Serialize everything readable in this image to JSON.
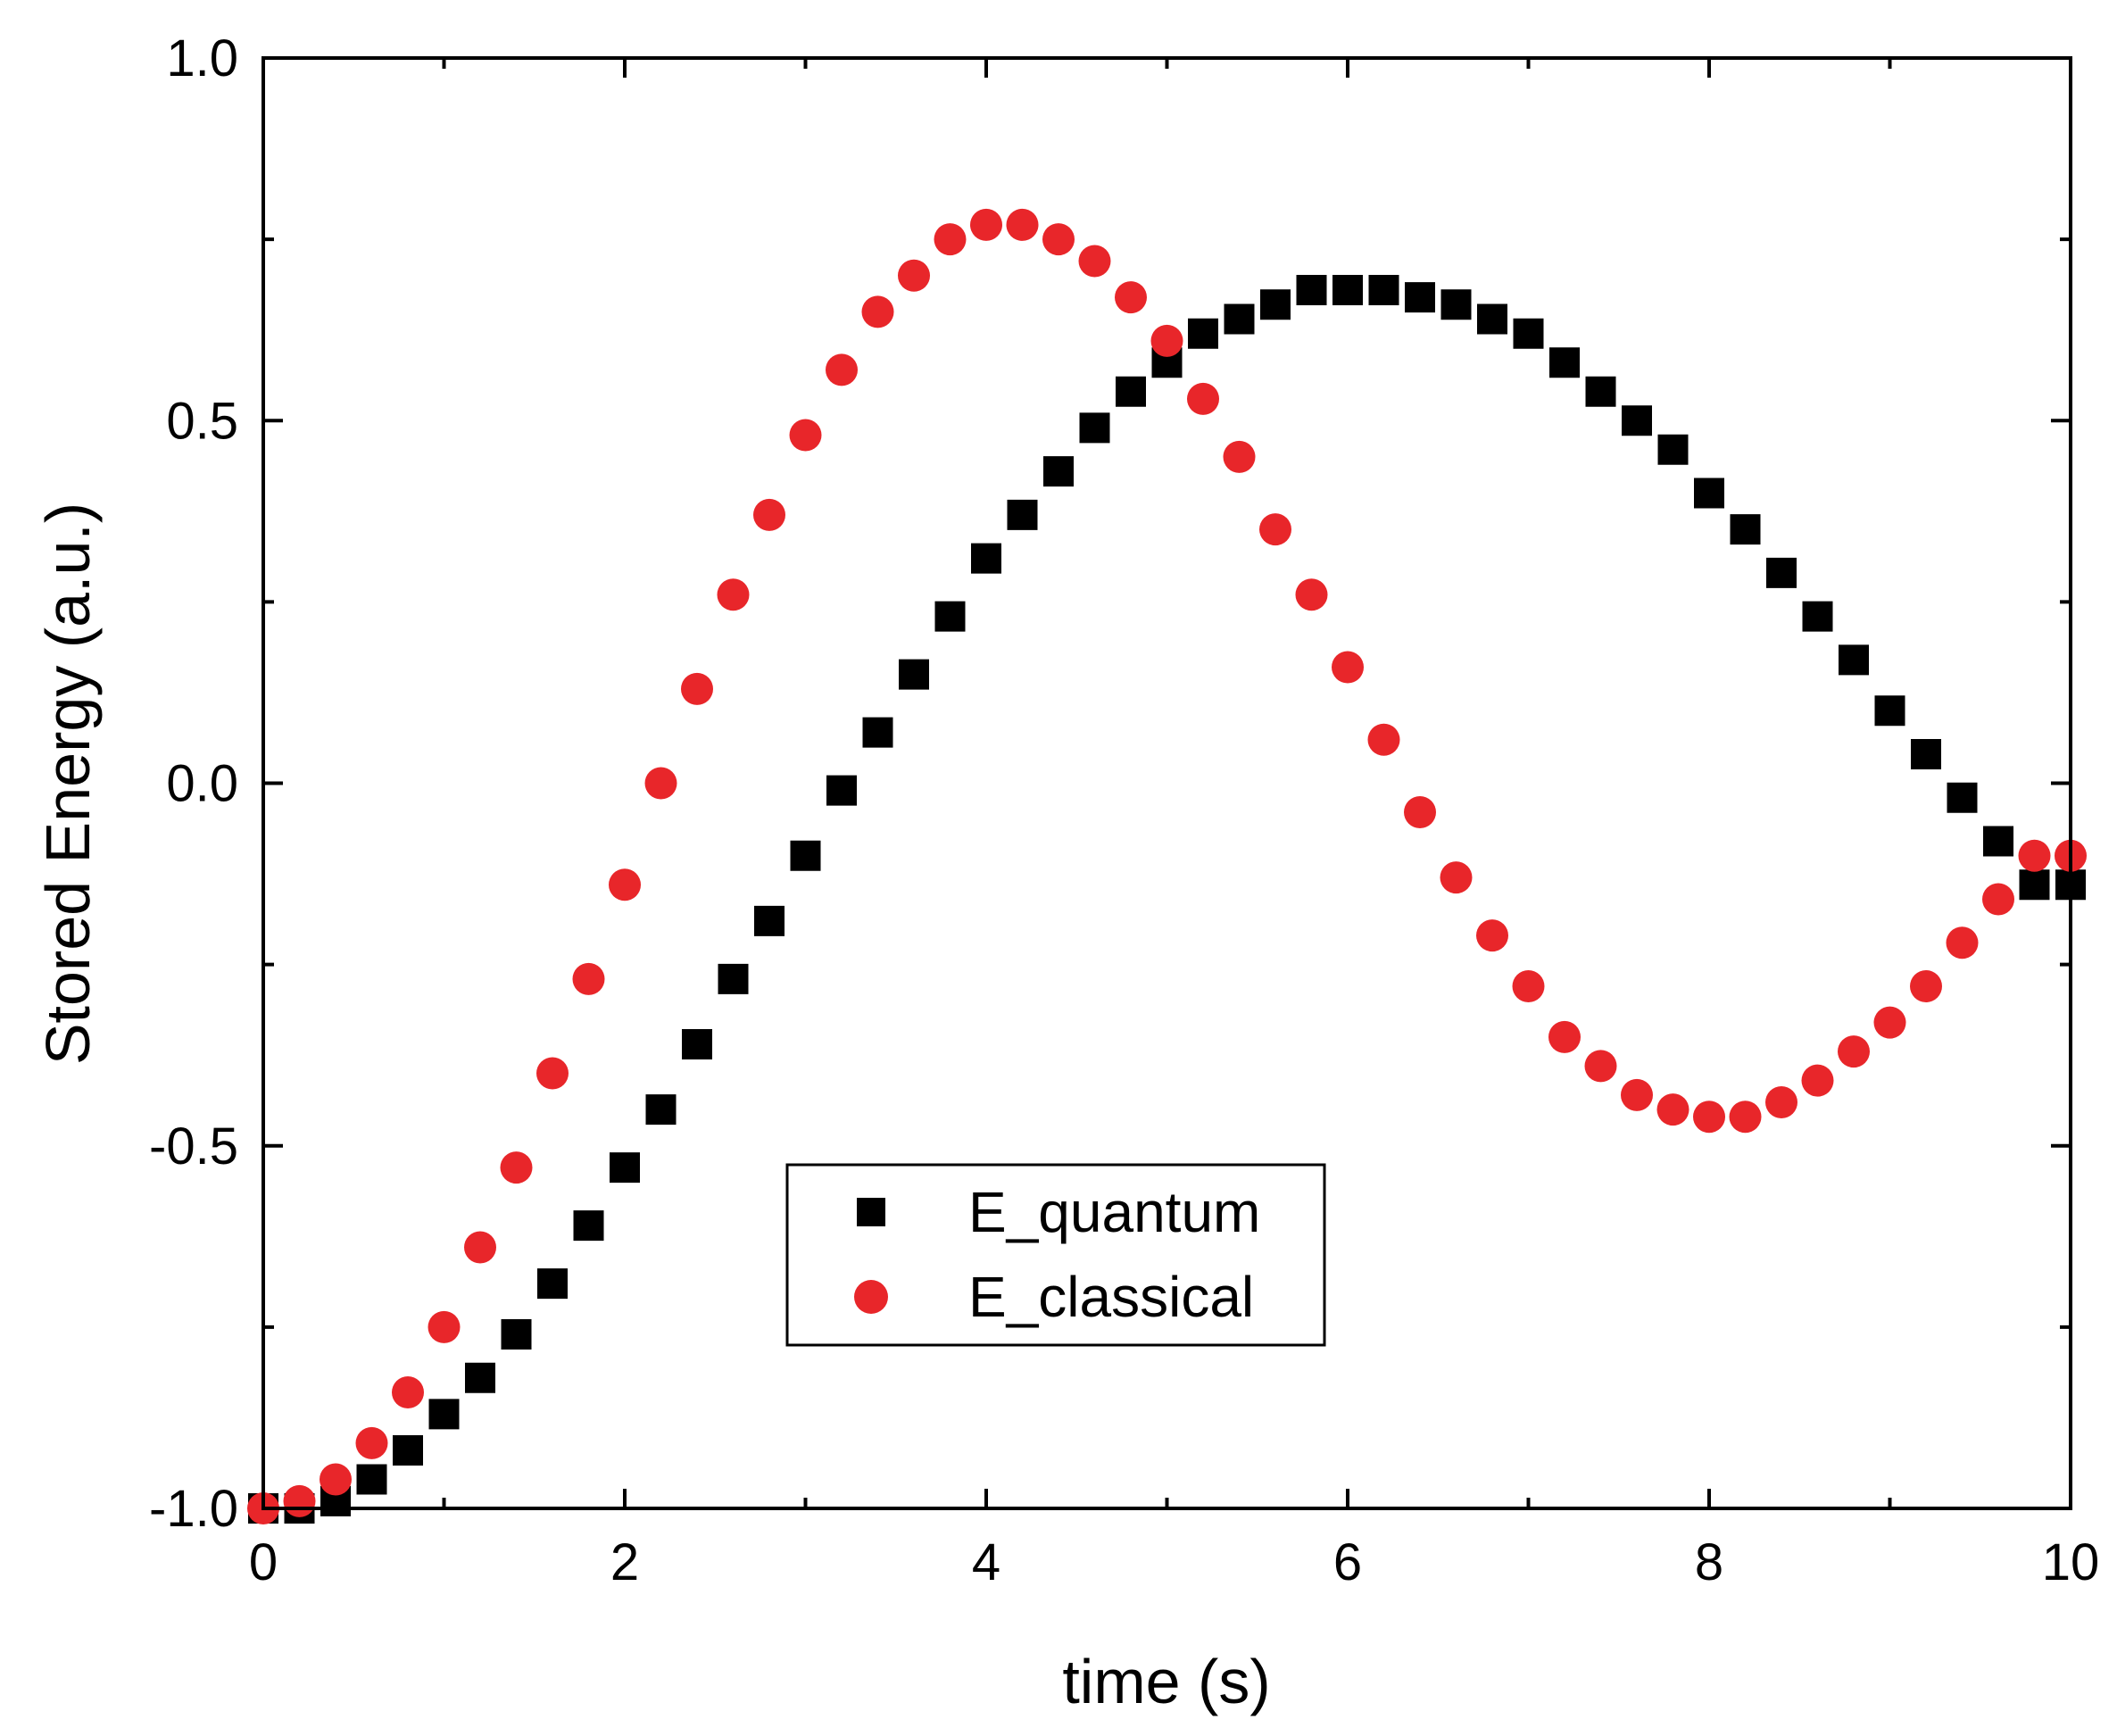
{
  "chart_data": {
    "type": "scatter",
    "title": "",
    "xlabel": "time (s)",
    "ylabel": "Stored Energy (a.u.)",
    "xlim": [
      0,
      10
    ],
    "ylim": [
      -1.0,
      1.0
    ],
    "xticks": [
      0,
      2,
      4,
      6,
      8,
      10
    ],
    "xtick_labels": [
      "0",
      "2",
      "4",
      "6",
      "8",
      "10"
    ],
    "yticks": [
      -1.0,
      -0.5,
      0.0,
      0.5,
      1.0
    ],
    "ytick_labels": [
      "-1.0",
      "-0.5",
      "0.0",
      "0.5",
      "1.0"
    ],
    "grid": false,
    "legend_position": "lower-center",
    "series": [
      {
        "name": "E_quantum",
        "marker": "square",
        "color": "#000000",
        "x": [
          0.0,
          0.2,
          0.4,
          0.6,
          0.8,
          1.0,
          1.2,
          1.4,
          1.6,
          1.8,
          2.0,
          2.2,
          2.4,
          2.6,
          2.8,
          3.0,
          3.2,
          3.4,
          3.6,
          3.8,
          4.0,
          4.2,
          4.4,
          4.6,
          4.8,
          5.0,
          5.2,
          5.4,
          5.6,
          5.8,
          6.0,
          6.2,
          6.4,
          6.6,
          6.8,
          7.0,
          7.2,
          7.4,
          7.6,
          7.8,
          8.0,
          8.2,
          8.4,
          8.6,
          8.8,
          9.0,
          9.2,
          9.4,
          9.6,
          9.8,
          10.0
        ],
        "y": [
          -1.0,
          -1.0,
          -0.99,
          -0.96,
          -0.92,
          -0.87,
          -0.82,
          -0.76,
          -0.69,
          -0.61,
          -0.53,
          -0.45,
          -0.36,
          -0.27,
          -0.19,
          -0.1,
          -0.01,
          0.07,
          0.15,
          0.23,
          0.31,
          0.37,
          0.43,
          0.49,
          0.54,
          0.58,
          0.62,
          0.64,
          0.66,
          0.68,
          0.68,
          0.68,
          0.67,
          0.66,
          0.64,
          0.62,
          0.58,
          0.54,
          0.5,
          0.46,
          0.4,
          0.35,
          0.29,
          0.23,
          0.17,
          0.1,
          0.04,
          -0.02,
          -0.08,
          -0.14,
          -0.14
        ]
      },
      {
        "name": "E_classical",
        "marker": "circle",
        "color": "#e8262a",
        "x": [
          0.0,
          0.2,
          0.4,
          0.6,
          0.8,
          1.0,
          1.2,
          1.4,
          1.6,
          1.8,
          2.0,
          2.2,
          2.4,
          2.6,
          2.8,
          3.0,
          3.2,
          3.4,
          3.6,
          3.8,
          4.0,
          4.2,
          4.4,
          4.6,
          4.8,
          5.0,
          5.2,
          5.4,
          5.6,
          5.8,
          6.0,
          6.2,
          6.4,
          6.6,
          6.8,
          7.0,
          7.2,
          7.4,
          7.6,
          7.8,
          8.0,
          8.2,
          8.4,
          8.6,
          8.8,
          9.0,
          9.2,
          9.4,
          9.6,
          9.8,
          10.0
        ],
        "y": [
          -1.0,
          -0.99,
          -0.96,
          -0.91,
          -0.84,
          -0.75,
          -0.64,
          -0.53,
          -0.4,
          -0.27,
          -0.14,
          0.0,
          0.13,
          0.26,
          0.37,
          0.48,
          0.57,
          0.65,
          0.7,
          0.75,
          0.77,
          0.77,
          0.75,
          0.72,
          0.67,
          0.61,
          0.53,
          0.45,
          0.35,
          0.26,
          0.16,
          0.06,
          -0.04,
          -0.13,
          -0.21,
          -0.28,
          -0.35,
          -0.39,
          -0.43,
          -0.45,
          -0.46,
          -0.46,
          -0.44,
          -0.41,
          -0.37,
          -0.33,
          -0.28,
          -0.22,
          -0.16,
          -0.1,
          -0.1
        ]
      }
    ]
  }
}
